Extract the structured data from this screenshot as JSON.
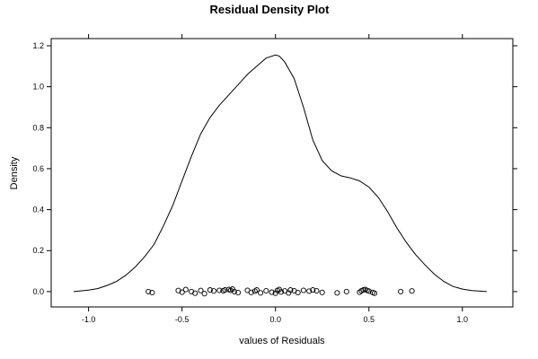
{
  "chart_data": {
    "type": "line",
    "title": "Residual Density Plot",
    "xlabel": "values of Residuals",
    "ylabel": "Density",
    "xlim": [
      -1.2,
      1.27
    ],
    "ylim": [
      -0.075,
      1.235
    ],
    "x_ticks": [
      -1.0,
      -0.5,
      0.0,
      0.5,
      1.0
    ],
    "x_tick_labels": [
      "-1.0",
      "-0.5",
      "0.0",
      "0.5",
      "1.0"
    ],
    "y_ticks": [
      0.0,
      0.2,
      0.4,
      0.6,
      0.8,
      1.0,
      1.2
    ],
    "y_tick_labels": [
      "0.0",
      "0.2",
      "0.4",
      "0.6",
      "0.8",
      "1.0",
      "1.2"
    ],
    "grid": false,
    "series": [
      {
        "style": "line",
        "color": "#000000",
        "x": [
          -1.08,
          -1.0,
          -0.95,
          -0.9,
          -0.85,
          -0.8,
          -0.75,
          -0.7,
          -0.65,
          -0.6,
          -0.55,
          -0.5,
          -0.45,
          -0.4,
          -0.35,
          -0.3,
          -0.25,
          -0.2,
          -0.15,
          -0.1,
          -0.05,
          0.0,
          0.02,
          0.05,
          0.1,
          0.15,
          0.2,
          0.25,
          0.3,
          0.35,
          0.4,
          0.45,
          0.5,
          0.55,
          0.6,
          0.65,
          0.7,
          0.75,
          0.8,
          0.85,
          0.9,
          0.95,
          1.0,
          1.05,
          1.13
        ],
        "y": [
          0.0,
          0.007,
          0.015,
          0.03,
          0.05,
          0.08,
          0.12,
          0.17,
          0.23,
          0.32,
          0.42,
          0.54,
          0.66,
          0.77,
          0.85,
          0.91,
          0.96,
          1.01,
          1.06,
          1.1,
          1.14,
          1.155,
          1.15,
          1.12,
          1.04,
          0.9,
          0.74,
          0.64,
          0.59,
          0.565,
          0.555,
          0.54,
          0.51,
          0.46,
          0.39,
          0.31,
          0.24,
          0.18,
          0.13,
          0.085,
          0.05,
          0.025,
          0.012,
          0.005,
          0.0
        ]
      },
      {
        "style": "points",
        "color": "#000000",
        "x": [
          -0.68,
          -0.66,
          -0.52,
          -0.5,
          -0.48,
          -0.45,
          -0.43,
          -0.4,
          -0.38,
          -0.35,
          -0.33,
          -0.3,
          -0.28,
          -0.27,
          -0.25,
          -0.24,
          -0.23,
          -0.22,
          -0.2,
          -0.15,
          -0.13,
          -0.11,
          -0.1,
          -0.08,
          -0.05,
          -0.02,
          0.0,
          0.01,
          0.02,
          0.03,
          0.05,
          0.07,
          0.08,
          0.1,
          0.12,
          0.15,
          0.18,
          0.2,
          0.22,
          0.25,
          0.33,
          0.38,
          0.45,
          0.46,
          0.47,
          0.48,
          0.49,
          0.5,
          0.52,
          0.53,
          0.67,
          0.73
        ],
        "y": [
          0.0,
          -0.005,
          0.005,
          -0.003,
          0.01,
          0.0,
          -0.008,
          0.005,
          -0.01,
          0.008,
          0.003,
          0.006,
          0.004,
          0.008,
          0.01,
          0.006,
          0.012,
          0.0,
          -0.005,
          0.006,
          -0.004,
          0.002,
          0.008,
          -0.006,
          0.004,
          -0.003,
          -0.008,
          0.005,
          0.01,
          -0.002,
          0.003,
          -0.007,
          0.008,
          0.004,
          -0.005,
          0.006,
          0.002,
          0.008,
          0.004,
          -0.004,
          -0.006,
          0.0,
          -0.003,
          0.004,
          0.008,
          0.01,
          0.006,
          0.002,
          -0.004,
          -0.008,
          0.0,
          0.003
        ]
      }
    ]
  }
}
